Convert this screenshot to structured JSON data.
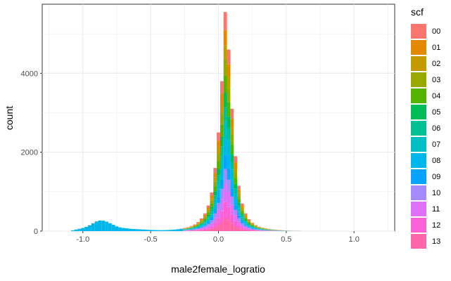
{
  "chart_data": {
    "type": "bar",
    "subtype": "stacked-histogram",
    "title": "",
    "xlabel": "male2female_logratio",
    "ylabel": "count",
    "xlim": [
      -1.3,
      1.3
    ],
    "ylim": [
      0,
      5750
    ],
    "x_ticks": [
      {
        "value": -1.0,
        "label": "-1.0"
      },
      {
        "value": -0.5,
        "label": "-0.5"
      },
      {
        "value": 0.0,
        "label": "0.0"
      },
      {
        "value": 0.5,
        "label": "0.5"
      },
      {
        "value": 1.0,
        "label": "1.0"
      }
    ],
    "y_ticks": [
      {
        "value": 0,
        "label": "0"
      },
      {
        "value": 2000,
        "label": "2000"
      },
      {
        "value": 4000,
        "label": "4000"
      }
    ],
    "grid": true,
    "legend_position": "right",
    "legend_title": "scf",
    "series": [
      {
        "name": "00",
        "color": "#F8766D"
      },
      {
        "name": "01",
        "color": "#E38900"
      },
      {
        "name": "02",
        "color": "#C49A00"
      },
      {
        "name": "03",
        "color": "#99A800"
      },
      {
        "name": "04",
        "color": "#53B400"
      },
      {
        "name": "05",
        "color": "#00BC56"
      },
      {
        "name": "06",
        "color": "#00C094"
      },
      {
        "name": "07",
        "color": "#00BFC4"
      },
      {
        "name": "08",
        "color": "#00B6EB"
      },
      {
        "name": "09",
        "color": "#06A4FF"
      },
      {
        "name": "10",
        "color": "#A58AFF"
      },
      {
        "name": "11",
        "color": "#DF70F8"
      },
      {
        "name": "12",
        "color": "#FB61D7"
      },
      {
        "name": "13",
        "color": "#FF66A8"
      }
    ],
    "bin_width": 0.025,
    "bins": [
      {
        "x": -1.075,
        "total": 20,
        "dominant": "08"
      },
      {
        "x": -1.05,
        "total": 40,
        "dominant": "08"
      },
      {
        "x": -1.025,
        "total": 60,
        "dominant": "08"
      },
      {
        "x": -1.0,
        "total": 80,
        "dominant": "08"
      },
      {
        "x": -0.975,
        "total": 110,
        "dominant": "08"
      },
      {
        "x": -0.95,
        "total": 150,
        "dominant": "08"
      },
      {
        "x": -0.925,
        "total": 200,
        "dominant": "08"
      },
      {
        "x": -0.9,
        "total": 245,
        "dominant": "08"
      },
      {
        "x": -0.875,
        "total": 270,
        "dominant": "08"
      },
      {
        "x": -0.85,
        "total": 265,
        "dominant": "08"
      },
      {
        "x": -0.825,
        "total": 240,
        "dominant": "08"
      },
      {
        "x": -0.8,
        "total": 200,
        "dominant": "08"
      },
      {
        "x": -0.775,
        "total": 160,
        "dominant": "08"
      },
      {
        "x": -0.75,
        "total": 120,
        "dominant": "08"
      },
      {
        "x": -0.725,
        "total": 95,
        "dominant": "08"
      },
      {
        "x": -0.7,
        "total": 80,
        "dominant": "08"
      },
      {
        "x": -0.675,
        "total": 70,
        "dominant": "08"
      },
      {
        "x": -0.65,
        "total": 60,
        "dominant": "08"
      },
      {
        "x": -0.625,
        "total": 55,
        "dominant": "08"
      },
      {
        "x": -0.6,
        "total": 50,
        "dominant": "08"
      },
      {
        "x": -0.575,
        "total": 45,
        "dominant": "08"
      },
      {
        "x": -0.55,
        "total": 40,
        "dominant": "08"
      },
      {
        "x": -0.525,
        "total": 35,
        "dominant": "08"
      },
      {
        "x": -0.5,
        "total": 30,
        "dominant": "08"
      },
      {
        "x": -0.475,
        "total": 28,
        "dominant": "08"
      },
      {
        "x": -0.45,
        "total": 26,
        "dominant": "08"
      },
      {
        "x": -0.425,
        "total": 24,
        "dominant": "08"
      },
      {
        "x": -0.4,
        "total": 25,
        "dominant": "08"
      },
      {
        "x": -0.375,
        "total": 28,
        "dominant": "08"
      },
      {
        "x": -0.35,
        "total": 32,
        "dominant": "08"
      },
      {
        "x": -0.325,
        "total": 38,
        "dominant": "08"
      },
      {
        "x": -0.3,
        "total": 48,
        "dominant": "08"
      },
      {
        "x": -0.275,
        "total": 60,
        "dominant": "08"
      },
      {
        "x": -0.25,
        "total": 80,
        "dominant": "mixed"
      },
      {
        "x": -0.225,
        "total": 100,
        "dominant": "mixed"
      },
      {
        "x": -0.2,
        "total": 130,
        "dominant": "mixed"
      },
      {
        "x": -0.175,
        "total": 170,
        "dominant": "mixed"
      },
      {
        "x": -0.15,
        "total": 230,
        "dominant": "mixed"
      },
      {
        "x": -0.125,
        "total": 320,
        "dominant": "mixed"
      },
      {
        "x": -0.1,
        "total": 450,
        "dominant": "mixed"
      },
      {
        "x": -0.075,
        "total": 650,
        "dominant": "mixed"
      },
      {
        "x": -0.05,
        "total": 980,
        "dominant": "mixed"
      },
      {
        "x": -0.025,
        "total": 1600,
        "dominant": "mixed"
      },
      {
        "x": 0.0,
        "total": 2500,
        "dominant": "mixed"
      },
      {
        "x": 0.025,
        "total": 3800,
        "dominant": "mixed"
      },
      {
        "x": 0.05,
        "total": 5550,
        "dominant": "mixed"
      },
      {
        "x": 0.075,
        "total": 4600,
        "dominant": "mixed"
      },
      {
        "x": 0.1,
        "total": 3100,
        "dominant": "mixed"
      },
      {
        "x": 0.125,
        "total": 1900,
        "dominant": "mixed"
      },
      {
        "x": 0.15,
        "total": 1150,
        "dominant": "mixed"
      },
      {
        "x": 0.175,
        "total": 700,
        "dominant": "mixed"
      },
      {
        "x": 0.2,
        "total": 450,
        "dominant": "mixed"
      },
      {
        "x": 0.225,
        "total": 300,
        "dominant": "mixed"
      },
      {
        "x": 0.25,
        "total": 210,
        "dominant": "mixed"
      },
      {
        "x": 0.275,
        "total": 150,
        "dominant": "mixed"
      },
      {
        "x": 0.3,
        "total": 110,
        "dominant": "mixed"
      },
      {
        "x": 0.325,
        "total": 85,
        "dominant": "mixed"
      },
      {
        "x": 0.35,
        "total": 70,
        "dominant": "mixed"
      },
      {
        "x": 0.375,
        "total": 55,
        "dominant": "mixed"
      },
      {
        "x": 0.4,
        "total": 45,
        "dominant": "mixed"
      },
      {
        "x": 0.425,
        "total": 35,
        "dominant": "mixed"
      },
      {
        "x": 0.45,
        "total": 28,
        "dominant": "mixed"
      },
      {
        "x": 0.475,
        "total": 22,
        "dominant": "mixed"
      },
      {
        "x": 0.5,
        "total": 16,
        "dominant": "mixed"
      },
      {
        "x": 0.525,
        "total": 12,
        "dominant": "mixed"
      },
      {
        "x": 0.55,
        "total": 9,
        "dominant": "mixed"
      },
      {
        "x": 0.575,
        "total": 7,
        "dominant": "mixed"
      },
      {
        "x": 0.6,
        "total": 5,
        "dominant": "mixed"
      }
    ]
  }
}
